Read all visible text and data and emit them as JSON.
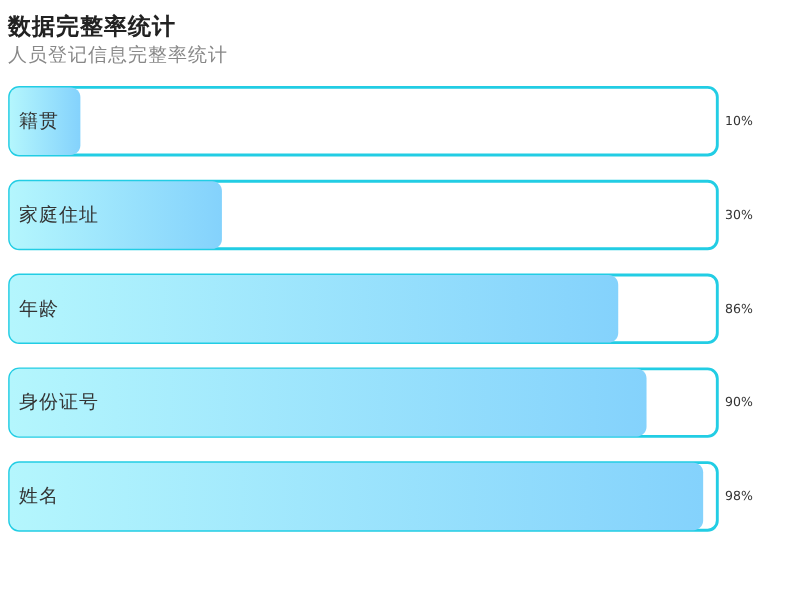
{
  "chart_data": {
    "type": "bar",
    "orientation": "horizontal",
    "title": "数据完整率统计",
    "subtitle": "人员登记信息完整率统计",
    "categories": [
      "籍贯",
      "家庭住址",
      "年龄",
      "身份证号",
      "姓名"
    ],
    "values": [
      10,
      30,
      86,
      90,
      98
    ],
    "value_labels": [
      "10%",
      "30%",
      "86%",
      "90%",
      "98%"
    ],
    "color": "#84d2fc",
    "xlim": [
      0,
      100
    ],
    "tick_labels": false
  }
}
